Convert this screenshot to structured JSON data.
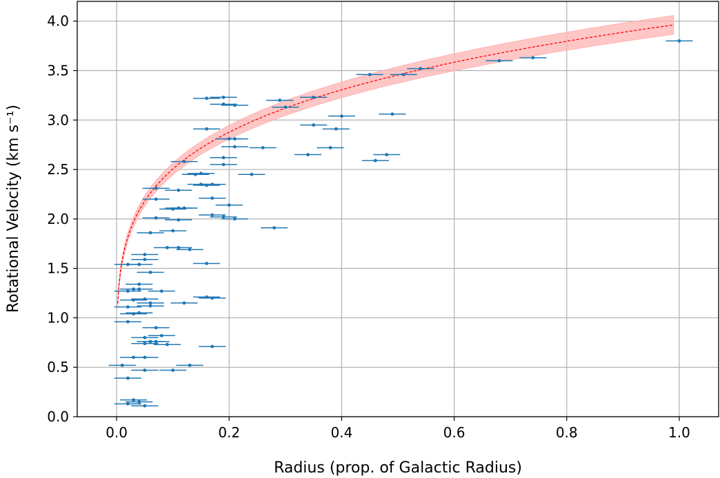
{
  "chart_data": {
    "type": "scatter",
    "title": "",
    "xlabel": "Radius (prop. of Galactic Radius)",
    "ylabel": "Rotational Velocity (km s⁻¹)",
    "xlim": [
      -0.07,
      1.07
    ],
    "ylim": [
      0.0,
      4.2
    ],
    "grid": true,
    "legend": "none",
    "x_ticks": [
      "0.0",
      "0.2",
      "0.4",
      "0.6",
      "0.8",
      "1.0"
    ],
    "x_tick_values": [
      0.0,
      0.2,
      0.4,
      0.6,
      0.8,
      1.0
    ],
    "y_ticks": [
      "0.0",
      "0.5",
      "1.0",
      "1.5",
      "2.0",
      "2.5",
      "3.0",
      "3.5",
      "4.0"
    ],
    "y_tick_values": [
      0.0,
      0.5,
      1.0,
      1.5,
      2.0,
      2.5,
      3.0,
      3.5,
      4.0
    ],
    "colors": {
      "points": "#1f77b4",
      "fit_line": "#ff0000",
      "fit_band": "#ffb3b3"
    },
    "series": [
      {
        "type": "errorbar",
        "x_error": 0.024,
        "points": [
          [
            1.0,
            3.8
          ],
          [
            0.74,
            3.63
          ],
          [
            0.68,
            3.6
          ],
          [
            0.54,
            3.52
          ],
          [
            0.51,
            3.46
          ],
          [
            0.45,
            3.46
          ],
          [
            0.35,
            3.23
          ],
          [
            0.29,
            3.2
          ],
          [
            0.3,
            3.13
          ],
          [
            0.49,
            3.06
          ],
          [
            0.4,
            3.04
          ],
          [
            0.35,
            2.95
          ],
          [
            0.39,
            2.91
          ],
          [
            0.38,
            2.72
          ],
          [
            0.48,
            2.65
          ],
          [
            0.46,
            2.59
          ],
          [
            0.34,
            2.65
          ],
          [
            0.26,
            2.72
          ],
          [
            0.24,
            2.45
          ],
          [
            0.28,
            1.91
          ],
          [
            0.19,
            3.23
          ],
          [
            0.16,
            3.22
          ],
          [
            0.19,
            3.16
          ],
          [
            0.21,
            3.15
          ],
          [
            0.16,
            2.91
          ],
          [
            0.2,
            2.81
          ],
          [
            0.21,
            2.81
          ],
          [
            0.21,
            2.73
          ],
          [
            0.19,
            2.62
          ],
          [
            0.19,
            2.55
          ],
          [
            0.12,
            2.58
          ],
          [
            0.14,
            2.45
          ],
          [
            0.15,
            2.46
          ],
          [
            0.15,
            2.35
          ],
          [
            0.16,
            2.34
          ],
          [
            0.17,
            2.35
          ],
          [
            0.17,
            2.21
          ],
          [
            0.2,
            2.14
          ],
          [
            0.17,
            2.04
          ],
          [
            0.19,
            2.02
          ],
          [
            0.21,
            2.0
          ],
          [
            0.07,
            2.31
          ],
          [
            0.11,
            2.29
          ],
          [
            0.07,
            2.2
          ],
          [
            0.1,
            2.1
          ],
          [
            0.11,
            2.11
          ],
          [
            0.12,
            2.11
          ],
          [
            0.07,
            2.01
          ],
          [
            0.11,
            1.99
          ],
          [
            0.06,
            1.86
          ],
          [
            0.1,
            1.88
          ],
          [
            0.09,
            1.71
          ],
          [
            0.11,
            1.71
          ],
          [
            0.13,
            1.69
          ],
          [
            0.16,
            1.55
          ],
          [
            0.02,
            1.54
          ],
          [
            0.04,
            1.54
          ],
          [
            0.05,
            1.64
          ],
          [
            0.05,
            1.59
          ],
          [
            0.06,
            1.46
          ],
          [
            0.04,
            1.34
          ],
          [
            0.04,
            1.29
          ],
          [
            0.02,
            1.27
          ],
          [
            0.03,
            1.29
          ],
          [
            0.08,
            1.27
          ],
          [
            0.05,
            1.19
          ],
          [
            0.06,
            1.15
          ],
          [
            0.06,
            1.12
          ],
          [
            0.03,
            1.18
          ],
          [
            0.02,
            1.11
          ],
          [
            0.16,
            1.21
          ],
          [
            0.17,
            1.2
          ],
          [
            0.12,
            1.15
          ],
          [
            0.04,
            1.05
          ],
          [
            0.03,
            1.04
          ],
          [
            0.02,
            0.96
          ],
          [
            0.07,
            0.9
          ],
          [
            0.08,
            0.82
          ],
          [
            0.05,
            0.8
          ],
          [
            0.06,
            0.76
          ],
          [
            0.07,
            0.76
          ],
          [
            0.05,
            0.74
          ],
          [
            0.09,
            0.73
          ],
          [
            0.17,
            0.71
          ],
          [
            0.03,
            0.6
          ],
          [
            0.05,
            0.6
          ],
          [
            0.13,
            0.52
          ],
          [
            0.01,
            0.52
          ],
          [
            0.05,
            0.47
          ],
          [
            0.1,
            0.47
          ],
          [
            0.02,
            0.39
          ],
          [
            0.03,
            0.17
          ],
          [
            0.04,
            0.15
          ],
          [
            0.02,
            0.13
          ],
          [
            0.05,
            0.11
          ]
        ]
      },
      {
        "type": "line",
        "style": "dashed",
        "model": "v = 3.97 × r^0.2"
      },
      {
        "type": "band",
        "model": "v = 3.97 × r^0.2 ± 2.4%"
      }
    ]
  }
}
